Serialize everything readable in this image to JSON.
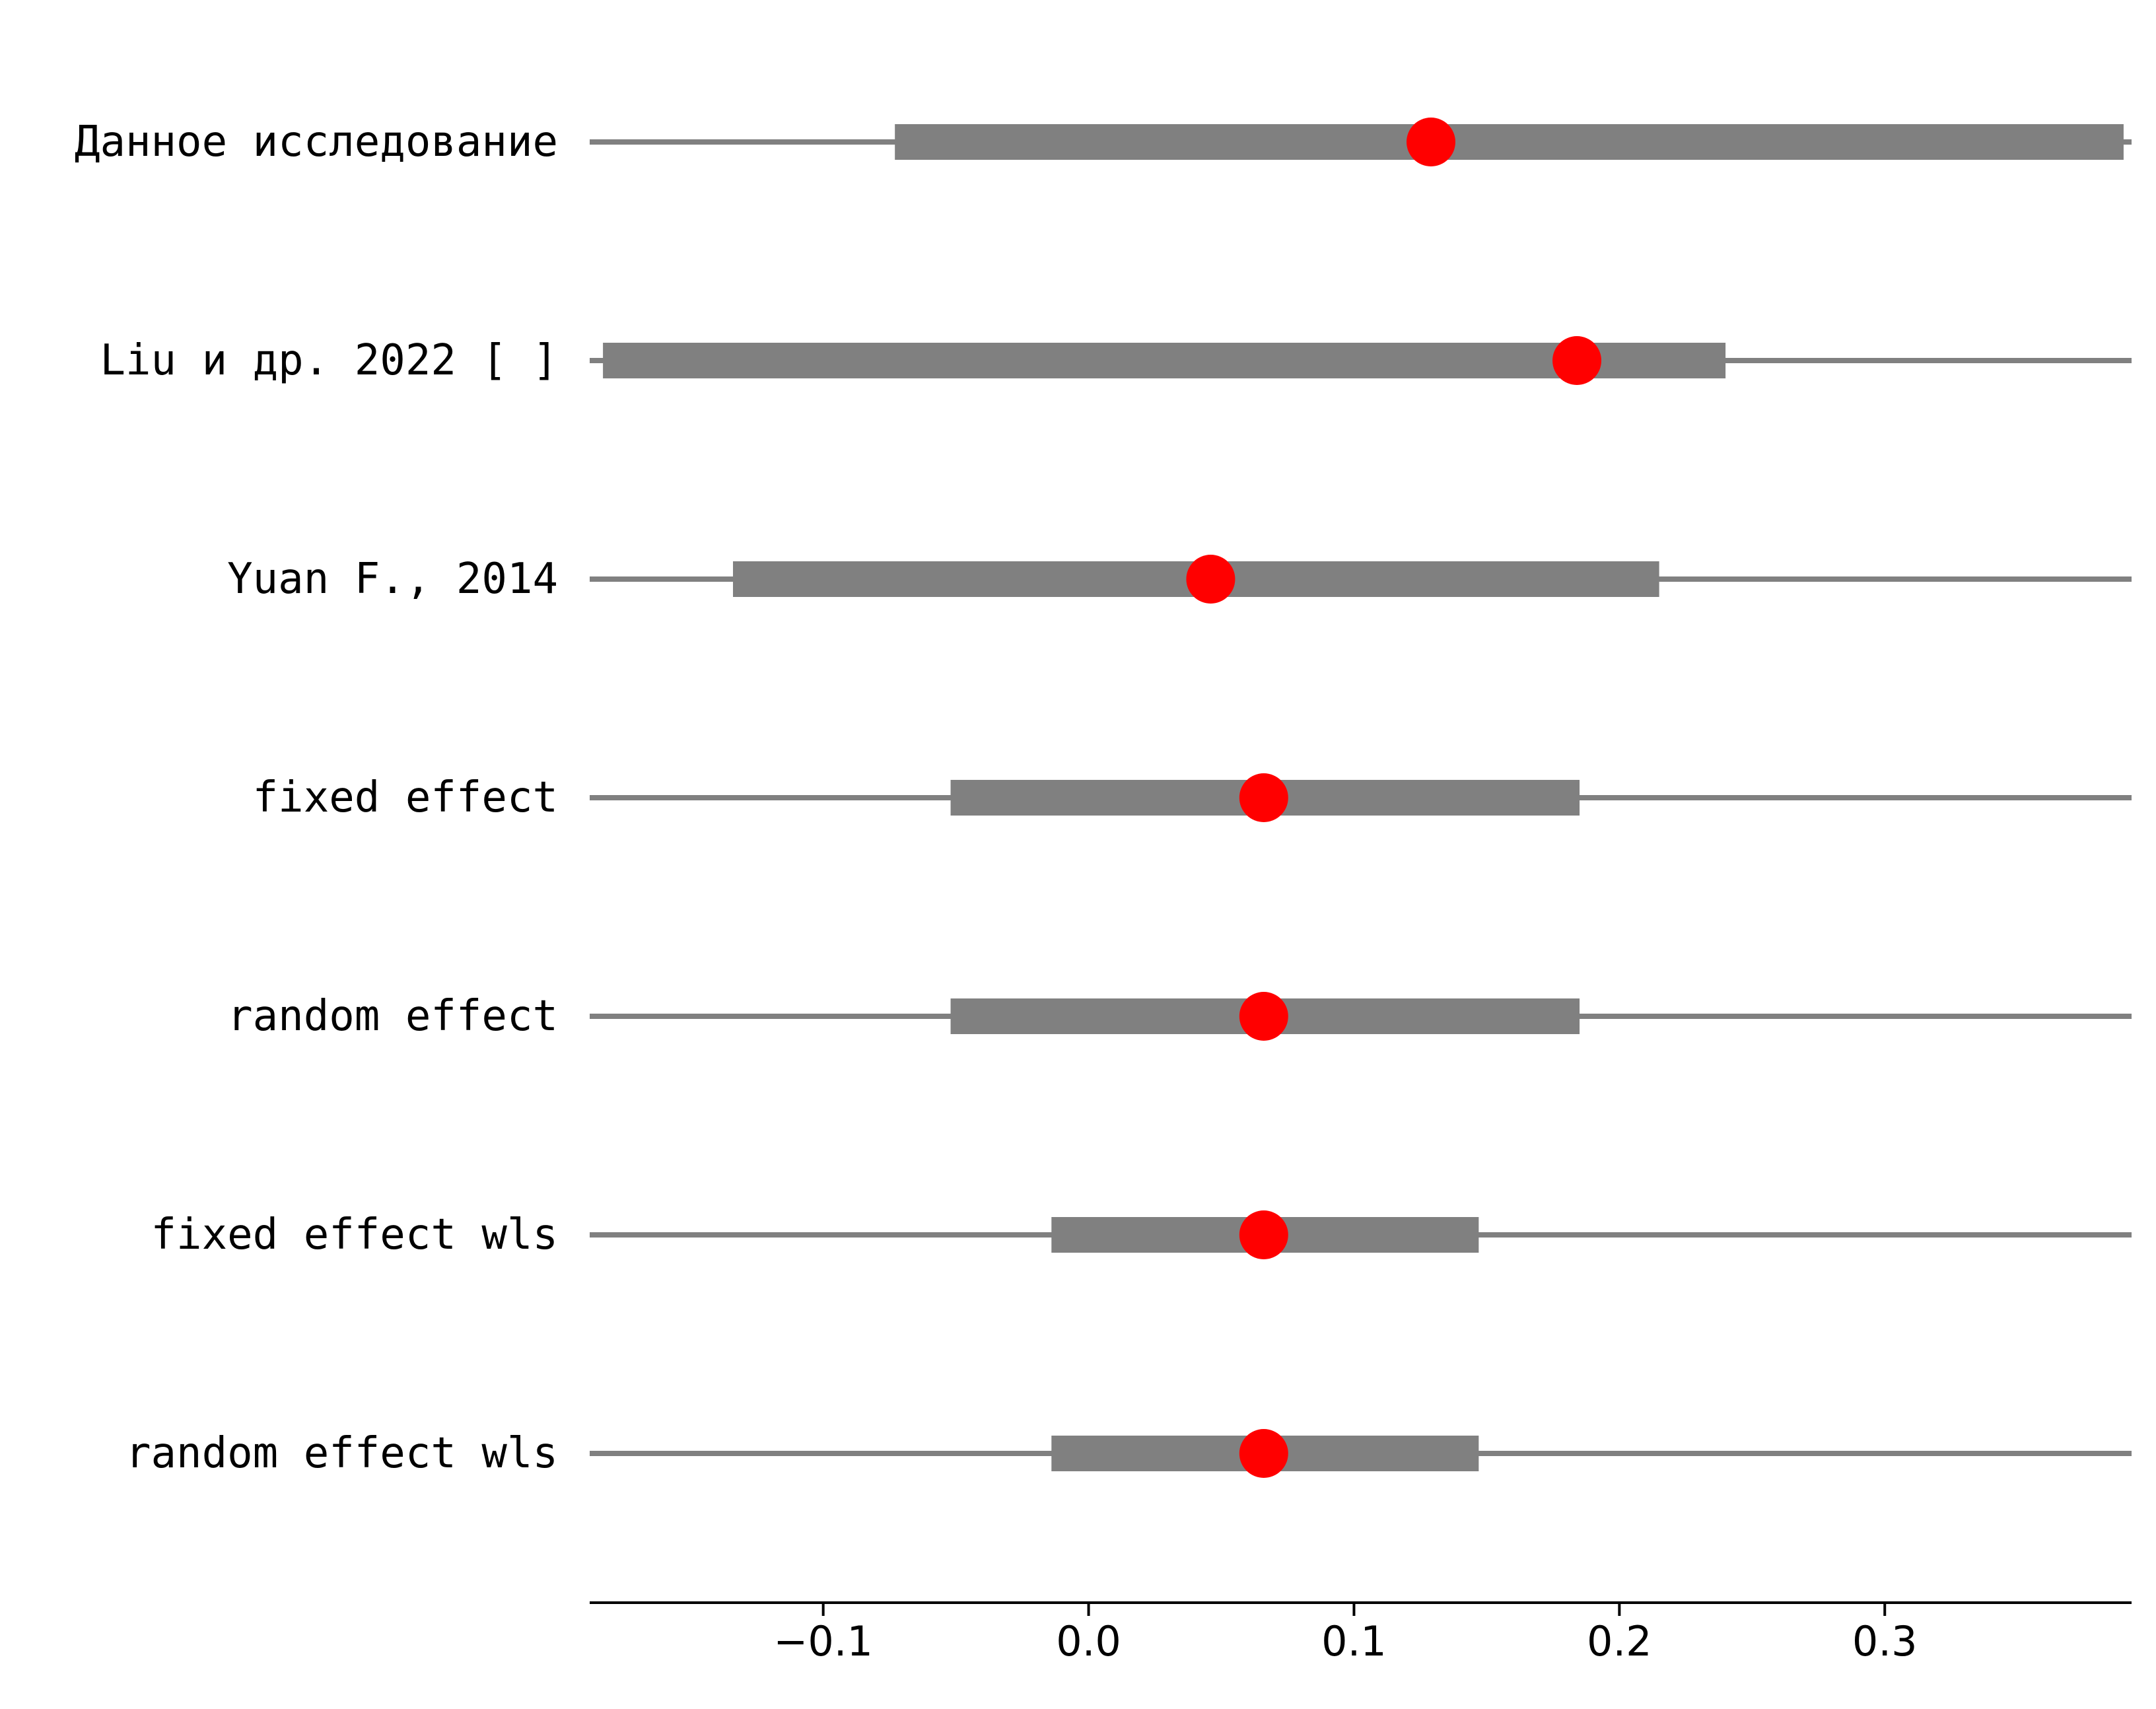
{
  "chart_data": {
    "type": "forest",
    "title": "",
    "xlabel": "",
    "ylabel": "",
    "xlim": [
      -0.188,
      0.393
    ],
    "xticks": [
      -0.1,
      0.0,
      0.1,
      0.2,
      0.3
    ],
    "xtick_labels": [
      "−0.1",
      "0.0",
      "0.1",
      "0.2",
      "0.3"
    ],
    "grid": false,
    "colors": {
      "interval": "#808080",
      "point": "#ff0000",
      "axis": "#000000"
    },
    "rows": [
      {
        "label": "Данное исследование",
        "estimate": 0.129,
        "ci_low": -0.073,
        "ci_high": 0.39,
        "wide_low": -0.188,
        "wide_high": 0.393
      },
      {
        "label": "Liu и др. 2022 [ ]",
        "estimate": 0.184,
        "ci_low": -0.183,
        "ci_high": 0.24,
        "wide_low": -0.188,
        "wide_high": 0.393
      },
      {
        "label": "Yuan F., 2014",
        "estimate": 0.046,
        "ci_low": -0.134,
        "ci_high": 0.215,
        "wide_low": -0.188,
        "wide_high": 0.393
      },
      {
        "label": "fixed effect",
        "estimate": 0.066,
        "ci_low": -0.052,
        "ci_high": 0.185,
        "wide_low": -0.188,
        "wide_high": 0.393
      },
      {
        "label": "random effect",
        "estimate": 0.066,
        "ci_low": -0.052,
        "ci_high": 0.185,
        "wide_low": -0.188,
        "wide_high": 0.393
      },
      {
        "label": "fixed effect wls",
        "estimate": 0.066,
        "ci_low": -0.014,
        "ci_high": 0.147,
        "wide_low": -0.188,
        "wide_high": 0.393
      },
      {
        "label": "random effect wls",
        "estimate": 0.066,
        "ci_low": -0.014,
        "ci_high": 0.147,
        "wide_low": -0.188,
        "wide_high": 0.393
      }
    ]
  }
}
